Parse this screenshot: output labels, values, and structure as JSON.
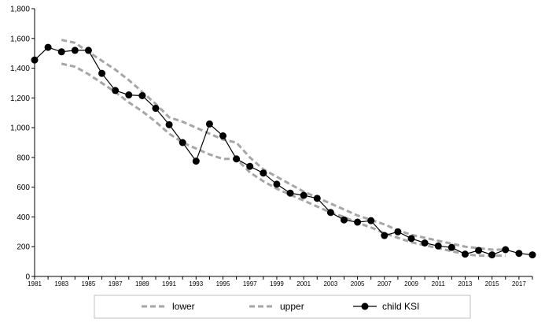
{
  "chart_data": {
    "type": "line",
    "title": "",
    "xlabel": "",
    "ylabel": "",
    "xlim": [
      1981,
      2018
    ],
    "ylim": [
      0,
      1800
    ],
    "y_ticks": [
      0,
      200,
      400,
      600,
      800,
      1000,
      1200,
      1400,
      1600,
      1800
    ],
    "y_tick_labels": [
      "0",
      "200",
      "400",
      "600",
      "800",
      "1,000",
      "1,200",
      "1,400",
      "1,600",
      "1,800"
    ],
    "x_ticks": [
      1981,
      1983,
      1985,
      1987,
      1989,
      1991,
      1993,
      1995,
      1997,
      1999,
      2001,
      2003,
      2005,
      2007,
      2009,
      2011,
      2013,
      2015,
      2017
    ],
    "x_tick_labels": [
      "1981",
      "1983",
      "1985",
      "1987",
      "1989",
      "1991",
      "1993",
      "1995",
      "1997",
      "1999",
      "2001",
      "2003",
      "2005",
      "2007",
      "2009",
      "2011",
      "2013",
      "2015",
      "2017"
    ],
    "grid": false,
    "legend_position": "bottom",
    "series": [
      {
        "name": "lower",
        "style": "dashed",
        "color": "#a6a6a6",
        "x": [
          1983,
          1984,
          1985,
          1986,
          1987,
          1988,
          1989,
          1990,
          1991,
          1992,
          1993,
          1994,
          1995,
          1996,
          1997,
          1998,
          1999,
          2000,
          2001,
          2002,
          2003,
          2004,
          2005,
          2006,
          2007,
          2008,
          2009,
          2010,
          2011,
          2012,
          2013,
          2014,
          2015,
          2016
        ],
        "y": [
          1430,
          1410,
          1360,
          1300,
          1240,
          1170,
          1110,
          1040,
          960,
          900,
          860,
          820,
          790,
          790,
          700,
          640,
          590,
          550,
          510,
          470,
          430,
          400,
          360,
          330,
          290,
          260,
          230,
          210,
          190,
          170,
          150,
          140,
          140,
          140
        ]
      },
      {
        "name": "upper",
        "style": "dashed",
        "color": "#a6a6a6",
        "x": [
          1983,
          1984,
          1985,
          1986,
          1987,
          1988,
          1989,
          1990,
          1991,
          1992,
          1993,
          1994,
          1995,
          1996,
          1997,
          1998,
          1999,
          2000,
          2001,
          2002,
          2003,
          2004,
          2005,
          2006,
          2007,
          2008,
          2009,
          2010,
          2011,
          2012,
          2013,
          2014,
          2015,
          2016
        ],
        "y": [
          1590,
          1570,
          1510,
          1450,
          1390,
          1320,
          1240,
          1160,
          1070,
          1040,
          1000,
          960,
          920,
          900,
          800,
          720,
          670,
          620,
          570,
          530,
          490,
          450,
          410,
          380,
          350,
          310,
          280,
          260,
          240,
          220,
          200,
          190,
          180,
          180
        ]
      },
      {
        "name": "child KSI",
        "style": "solid-markers",
        "color": "#000000",
        "x": [
          1981,
          1982,
          1983,
          1984,
          1985,
          1986,
          1987,
          1988,
          1989,
          1990,
          1991,
          1992,
          1993,
          1994,
          1995,
          1996,
          1997,
          1998,
          1999,
          2000,
          2001,
          2002,
          2003,
          2004,
          2005,
          2006,
          2007,
          2008,
          2009,
          2010,
          2011,
          2012,
          2013,
          2014,
          2015,
          2016,
          2017,
          2018
        ],
        "y": [
          1455,
          1540,
          1510,
          1520,
          1520,
          1365,
          1250,
          1220,
          1215,
          1130,
          1020,
          900,
          775,
          1025,
          945,
          790,
          740,
          695,
          620,
          560,
          545,
          525,
          430,
          380,
          365,
          375,
          275,
          300,
          255,
          225,
          205,
          195,
          150,
          175,
          145,
          180,
          155,
          145
        ]
      }
    ]
  }
}
